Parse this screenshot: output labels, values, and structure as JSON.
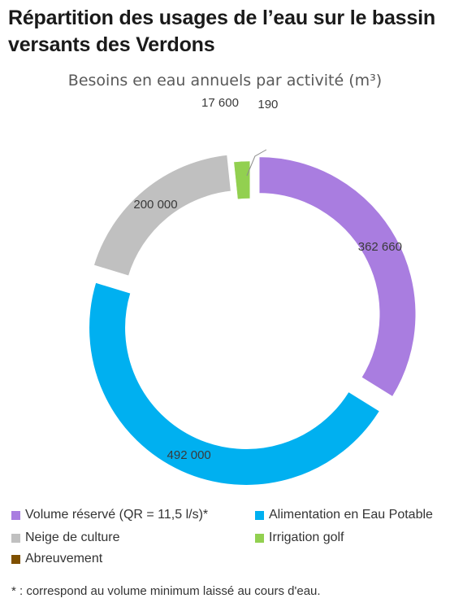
{
  "header": {
    "title": "Répartition des usages de l’eau sur le bassin versants des Verdons"
  },
  "chart_data": {
    "type": "pie",
    "variant": "donut",
    "title": "Besoins en eau annuels par activité (m³)",
    "slices": [
      {
        "name": "Volume réservé (QR = 11,5 l/s)*",
        "value": 362660,
        "label": "362 660",
        "color": "#a97de0"
      },
      {
        "name": "Alimentation en Eau Potable",
        "value": 492000,
        "label": "492 000",
        "color": "#00b0f0"
      },
      {
        "name": "Neige de culture",
        "value": 200000,
        "label": "200 000",
        "color": "#c0c0c0"
      },
      {
        "name": "Irrigation golf",
        "value": 17600,
        "label": "17 600",
        "color": "#92d050"
      },
      {
        "name": "Abreuvement",
        "value": 190,
        "label": "190",
        "color": "#7f5000"
      }
    ],
    "legend_position": "bottom"
  },
  "legend": {
    "items": [
      {
        "label": "Volume réservé (QR = 11,5 l/s)*",
        "color": "#a97de0"
      },
      {
        "label": "Alimentation en Eau Potable",
        "color": "#00b0f0"
      },
      {
        "label": "Neige de culture",
        "color": "#c0c0c0"
      },
      {
        "label": "Irrigation golf",
        "color": "#92d050"
      },
      {
        "label": "Abreuvement",
        "color": "#7f5000"
      }
    ]
  },
  "footnote": "* : correspond au volume minimum laissé au cours d'eau."
}
